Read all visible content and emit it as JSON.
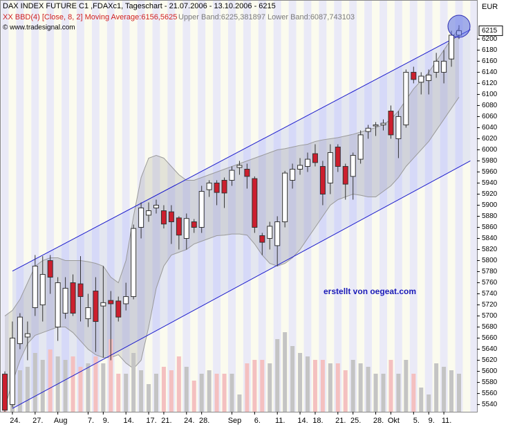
{
  "chart_data": {
    "type": "candlestick",
    "title": "DAX INDEX FUTURE C1 ,FDAXc1, Tageschart - 21.07.2006 - 13.10.2006 - 6215",
    "indicator_label": "XX BBD(4) [Close, 8, 2] Moving Average:6156,5625",
    "band_label": "Upper Band:6225,381897 Lower Band:6087,743103",
    "source": "© www.tradesignal.com",
    "annotation": "erstellt von oegeat.com",
    "unit": "EUR",
    "categories": [
      null,
      "24.",
      null,
      null,
      "27.",
      null,
      null,
      "Aug",
      null,
      null,
      null,
      "7.",
      null,
      "9.",
      null,
      null,
      "14.",
      null,
      null,
      "17.",
      null,
      "21.",
      null,
      null,
      "24.",
      null,
      "28.",
      null,
      null,
      null,
      "Sep",
      null,
      null,
      "6.",
      null,
      null,
      "11.",
      null,
      null,
      "14.",
      null,
      "18.",
      null,
      null,
      "21.",
      null,
      "25.",
      null,
      null,
      "28.",
      null,
      "Okt",
      null,
      null,
      "5.",
      null,
      "9.",
      null,
      "11.",
      null,
      null
    ],
    "open": [
      5595,
      5540,
      5650,
      5662,
      5715,
      5720,
      5800,
      5680,
      5705,
      5760,
      5758,
      5695,
      5745,
      5718,
      5728,
      5727,
      5722,
      5735,
      5860,
      5882,
      5895,
      5890,
      5888,
      5877,
      5840,
      5870,
      5860,
      5928,
      5940,
      5945,
      5945,
      5968,
      5965,
      5948,
      5845,
      5840,
      5827,
      5870,
      5945,
      5965,
      5970,
      5993,
      5970,
      5940,
      6005,
      5970,
      5952,
      5983,
      6033,
      6043,
      6045,
      6070,
      6020,
      6045,
      6140,
      6122,
      6125,
      6140,
      6140,
      6164,
      6207
    ],
    "high": [
      5600,
      5690,
      5705,
      5690,
      5810,
      5808,
      5810,
      5770,
      5770,
      5775,
      5808,
      5740,
      5770,
      5790,
      5745,
      5735,
      5760,
      5865,
      5905,
      5905,
      5910,
      5900,
      5900,
      5880,
      5885,
      5875,
      5935,
      5945,
      5945,
      5950,
      5970,
      5980,
      5975,
      5952,
      5850,
      5870,
      5880,
      5962,
      5975,
      5985,
      5995,
      6010,
      5980,
      6010,
      6010,
      5975,
      5995,
      6035,
      6045,
      6050,
      6055,
      6080,
      6070,
      6145,
      6150,
      6140,
      6145,
      6175,
      6180,
      6215,
      6225
    ],
    "low": [
      5527,
      5535,
      5640,
      5620,
      5700,
      5690,
      5740,
      5655,
      5695,
      5700,
      5690,
      5680,
      5635,
      5625,
      5620,
      5690,
      5710,
      5730,
      5840,
      5870,
      5885,
      5858,
      5830,
      5820,
      5820,
      5850,
      5850,
      5915,
      5900,
      5895,
      5935,
      5955,
      5930,
      5850,
      5810,
      5820,
      5790,
      5860,
      5930,
      5955,
      5960,
      5970,
      5900,
      5920,
      5960,
      5910,
      5910,
      5975,
      6020,
      6025,
      6035,
      6020,
      5985,
      6040,
      6120,
      6100,
      6100,
      6130,
      6120,
      6150,
      6200
    ],
    "close": [
      5530,
      5660,
      5698,
      5668,
      5790,
      5775,
      5770,
      5760,
      5750,
      5705,
      5735,
      5715,
      5690,
      5724,
      5722,
      5698,
      5735,
      5858,
      5895,
      5890,
      5900,
      5866,
      5870,
      5846,
      5876,
      5860,
      5925,
      5940,
      5923,
      5922,
      5963,
      5972,
      5952,
      5860,
      5833,
      5862,
      5870,
      5958,
      5965,
      5972,
      5983,
      5977,
      5920,
      5995,
      5970,
      5938,
      5990,
      6027,
      6039,
      6045,
      6048,
      6027,
      6060,
      6140,
      6127,
      6133,
      6135,
      6160,
      6160,
      6207,
      6215
    ],
    "upper_band": [
      5700,
      5710,
      5730,
      5760,
      5790,
      5800,
      5805,
      5805,
      5800,
      5800,
      5800,
      5798,
      5795,
      5790,
      5770,
      5760,
      5800,
      5880,
      5950,
      5985,
      5990,
      5985,
      5970,
      5955,
      5945,
      5945,
      5950,
      5955,
      5960,
      5965,
      5970,
      5975,
      5980,
      5985,
      5990,
      5995,
      6000,
      6002,
      6005,
      6008,
      6010,
      6015,
      6018,
      6020,
      6022,
      6025,
      6028,
      6032,
      6036,
      6040,
      6045,
      6055,
      6070,
      6090,
      6110,
      6125,
      6140,
      6160,
      6180,
      6200,
      6220
    ],
    "lower_band": [
      5535,
      5580,
      5620,
      5650,
      5665,
      5670,
      5675,
      5680,
      5680,
      5670,
      5655,
      5640,
      5630,
      5625,
      5625,
      5630,
      5615,
      5605,
      5620,
      5680,
      5750,
      5790,
      5810,
      5815,
      5820,
      5830,
      5835,
      5840,
      5845,
      5846,
      5848,
      5848,
      5846,
      5830,
      5810,
      5795,
      5790,
      5795,
      5805,
      5820,
      5840,
      5860,
      5880,
      5900,
      5910,
      5915,
      5920,
      5918,
      5915,
      5915,
      5925,
      5935,
      5950,
      5970,
      5985,
      6000,
      6015,
      6035,
      6055,
      6075,
      6095
    ],
    "volume": [
      50,
      60,
      60,
      65,
      85,
      75,
      90,
      80,
      75,
      80,
      65,
      70,
      80,
      70,
      105,
      55,
      55,
      85,
      60,
      40,
      55,
      65,
      60,
      80,
      65,
      45,
      55,
      60,
      55,
      55,
      55,
      25,
      70,
      75,
      75,
      70,
      105,
      115,
      95,
      85,
      80,
      75,
      75,
      70,
      70,
      60,
      75,
      70,
      65,
      55,
      55,
      75,
      55,
      75,
      55,
      35,
      25,
      70,
      65,
      60,
      55
    ],
    "channel": [
      {
        "x": [
          1,
          61.5
        ],
        "values": [
          5781,
          6217
        ]
      },
      {
        "x": [
          1,
          61.5
        ],
        "values": [
          5533,
          5980
        ]
      }
    ],
    "ylim": [
      5527,
      6243
    ],
    "yticks": [
      5540,
      5560,
      5580,
      5600,
      5620,
      5640,
      5660,
      5680,
      5700,
      5720,
      5740,
      5760,
      5780,
      5800,
      5820,
      5840,
      5860,
      5880,
      5900,
      5920,
      5940,
      5960,
      5980,
      6000,
      6020,
      6040,
      6060,
      6080,
      6100,
      6120,
      6140,
      6160,
      6180,
      6200
    ],
    "colors": {
      "up": "#ffffff",
      "down": "#cc1f2e",
      "volume_up": "#c4c4c4",
      "volume_down": "#f4c0c0",
      "band": "#9a9a9a",
      "channel": "#1c1ccc"
    }
  }
}
